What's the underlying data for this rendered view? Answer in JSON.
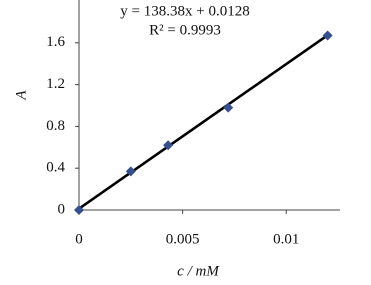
{
  "chart_data": {
    "type": "scatter",
    "x_label": "c / mM",
    "y_label": "A",
    "equation": "y = 138.38x + 0.0128",
    "r2_label": "R² = 0.9993",
    "x": [
      0,
      0.0025,
      0.0043,
      0.0072,
      0.012
    ],
    "values": [
      0,
      0.37,
      0.62,
      0.98,
      1.67
    ],
    "color": "#34508f",
    "trendline": {
      "slope": 138.38,
      "intercept": 0.0128,
      "color": "#000000"
    },
    "xlim": [
      0,
      0.0125
    ],
    "xticks": [
      0,
      0.005,
      0.01
    ],
    "ylim": [
      0,
      2
    ],
    "yticks": [
      0,
      0.4,
      0.8,
      1.2,
      1.6
    ]
  }
}
